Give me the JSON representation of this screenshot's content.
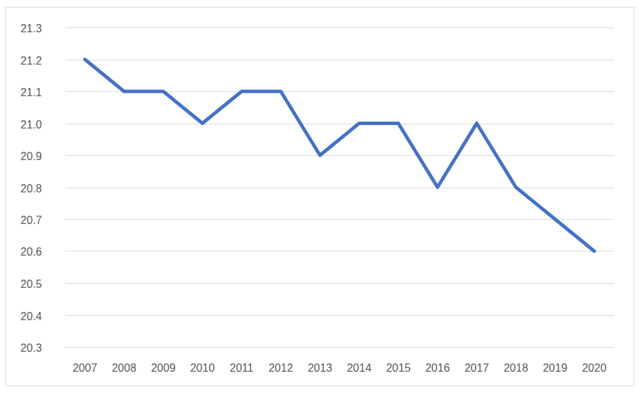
{
  "chart_data": {
    "type": "line",
    "categories": [
      "2007",
      "2008",
      "2009",
      "2010",
      "2011",
      "2012",
      "2013",
      "2014",
      "2015",
      "2016",
      "2017",
      "2018",
      "2019",
      "2020"
    ],
    "values": [
      21.2,
      21.1,
      21.1,
      21.0,
      21.1,
      21.1,
      20.9,
      21.0,
      21.0,
      20.8,
      21.0,
      20.8,
      20.7,
      20.6
    ],
    "color": "#4472c4",
    "ylim": [
      20.3,
      21.3
    ],
    "yticks": [
      20.3,
      20.4,
      20.5,
      20.6,
      20.7,
      20.8,
      20.9,
      {
        "value": 21,
        "label": "21.0"
      },
      21.1,
      21.2,
      21.3
    ],
    "grid": true
  }
}
